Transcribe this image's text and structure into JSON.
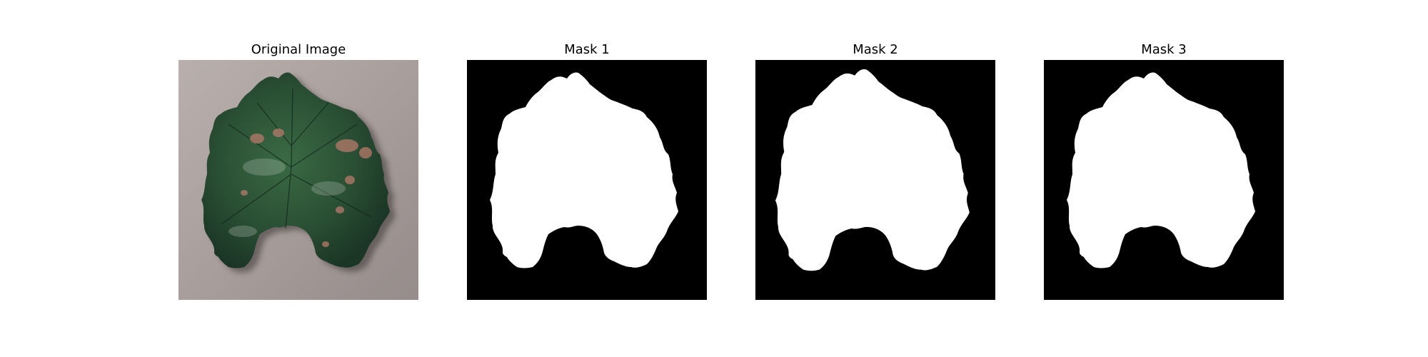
{
  "figure": {
    "panels": [
      {
        "title": "Original Image"
      },
      {
        "title": "Mask 1"
      },
      {
        "title": "Mask 2"
      },
      {
        "title": "Mask 3"
      }
    ]
  },
  "colors": {
    "background": "#ffffff",
    "mask_fg": "#ffffff",
    "mask_bg": "#000000",
    "leaf_dark": "#1f3f2a",
    "leaf_mid": "#2f5a3a",
    "surface": "#a89e9c",
    "lesion": "#b77a6b"
  }
}
